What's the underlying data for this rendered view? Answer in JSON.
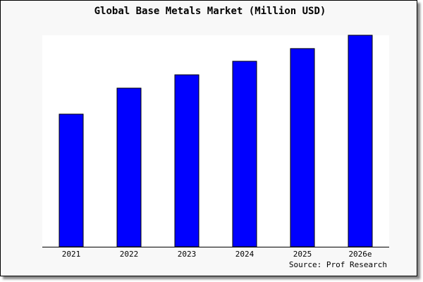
{
  "chart_data": {
    "type": "bar",
    "title": "Global Base Metals Market (Million USD)",
    "categories": [
      "2021",
      "2022",
      "2023",
      "2024",
      "2025",
      "2026e"
    ],
    "values": [
      62.7,
      75.0,
      81.3,
      87.7,
      93.7,
      100.0
    ],
    "ylim": [
      0,
      100
    ],
    "xlabel": "",
    "ylabel": "",
    "grid": false,
    "bar_color": "#0000ff",
    "source": "Source: Prof Research"
  }
}
